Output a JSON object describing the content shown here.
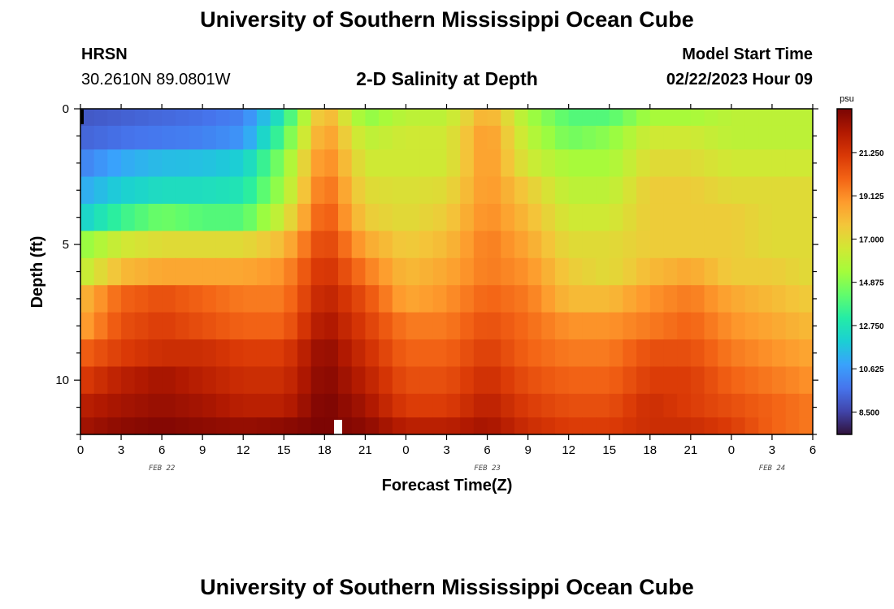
{
  "header": {
    "title": "University of Southern Mississippi Ocean Cube",
    "station": "HRSN",
    "coords": "30.2610N  89.0801W",
    "plot_title": "2-D Salinity at Depth",
    "model_label": "Model Start Time",
    "model_time": "02/22/2023 Hour 09"
  },
  "footer": {
    "title": "University of Southern Mississippi Ocean Cube"
  },
  "chart_data": {
    "type": "heatmap",
    "title": "2-D Salinity at Depth",
    "xlabel": "Forecast Time(Z)",
    "ylabel": "Depth (ft)",
    "x_ticks": [
      "0",
      "3",
      "6",
      "9",
      "12",
      "15",
      "18",
      "21",
      "0",
      "3",
      "6",
      "9",
      "12",
      "15",
      "18",
      "21",
      "0",
      "3",
      "6"
    ],
    "x_dates": [
      {
        "label": "FEB 22",
        "hour": 6
      },
      {
        "label": "FEB 23",
        "hour": 30
      },
      {
        "label": "FEB 24",
        "hour": 51
      }
    ],
    "x_range_hours": [
      0,
      54
    ],
    "y_ticks": [
      "0",
      "5",
      "10"
    ],
    "y_tick_values": [
      0,
      5,
      10
    ],
    "y_range_ft": [
      0,
      12
    ],
    "colorbar": {
      "unit": "psu",
      "min": 7.4,
      "max": 23.4,
      "ticks": [
        "21.250",
        "19.125",
        "17.000",
        "14.875",
        "12.750",
        "10.625",
        "8.500"
      ],
      "tick_values": [
        21.25,
        19.125,
        17.0,
        14.875,
        12.75,
        10.625,
        8.5
      ],
      "palette": [
        "#30123b",
        "#4145ab",
        "#4675ed",
        "#39a2fc",
        "#1bcfd4",
        "#24eca6",
        "#61fc6c",
        "#a4fc3b",
        "#d1e834",
        "#f3c63a",
        "#fe9b2d",
        "#f36315",
        "#d93806",
        "#b11901",
        "#7a0403"
      ]
    },
    "depth_levels_ft": [
      0.25,
      1.0,
      2.0,
      3.0,
      4.0,
      5.0,
      6.0,
      7.0,
      8.0,
      9.0,
      10.0,
      11.0,
      11.75
    ],
    "time_hours": [
      0,
      3,
      6,
      9,
      12,
      15,
      18,
      21,
      24,
      27,
      30,
      33,
      36,
      39,
      42,
      45,
      48,
      51,
      54
    ],
    "salinity_psu": [
      [
        9.0,
        9.2,
        9.4,
        9.6,
        10.0,
        13.0,
        18.5,
        15.0,
        16.0,
        16.0,
        18.5,
        15.5,
        14.0,
        14.0,
        15.5,
        15.5,
        16.0,
        16.0,
        16.0
      ],
      [
        9.3,
        9.6,
        9.8,
        10.0,
        10.5,
        14.0,
        19.0,
        16.0,
        16.5,
        16.5,
        19.0,
        16.0,
        14.5,
        15.0,
        16.5,
        16.5,
        16.0,
        16.0,
        16.0
      ],
      [
        10.0,
        11.0,
        11.5,
        11.6,
        12.0,
        15.0,
        19.5,
        16.5,
        16.5,
        16.5,
        19.0,
        16.5,
        15.5,
        15.5,
        17.0,
        17.0,
        16.5,
        16.5,
        16.5
      ],
      [
        11.0,
        12.0,
        12.5,
        12.5,
        12.8,
        15.5,
        20.0,
        17.0,
        16.8,
        17.0,
        19.0,
        17.5,
        16.0,
        16.0,
        17.5,
        17.5,
        17.0,
        17.0,
        17.0
      ],
      [
        12.0,
        13.5,
        14.5,
        14.0,
        14.0,
        16.5,
        20.5,
        17.5,
        17.0,
        17.5,
        19.2,
        18.0,
        16.5,
        16.5,
        17.5,
        17.5,
        17.5,
        17.0,
        17.0
      ],
      [
        15.0,
        16.5,
        17.0,
        17.0,
        17.0,
        18.0,
        21.0,
        18.5,
        17.5,
        18.0,
        19.5,
        18.5,
        17.0,
        17.0,
        17.5,
        17.5,
        17.5,
        17.0,
        17.0
      ],
      [
        16.0,
        18.0,
        18.5,
        18.5,
        18.5,
        19.0,
        21.5,
        19.5,
        18.0,
        18.5,
        19.5,
        19.0,
        17.5,
        17.0,
        18.0,
        18.5,
        17.5,
        17.5,
        17.0
      ],
      [
        18.0,
        20.0,
        20.5,
        20.0,
        19.5,
        19.5,
        22.0,
        20.5,
        18.5,
        19.0,
        20.0,
        19.5,
        18.0,
        18.0,
        19.0,
        19.5,
        18.5,
        18.0,
        17.5
      ],
      [
        18.5,
        20.5,
        21.0,
        20.5,
        20.0,
        20.0,
        22.5,
        21.0,
        19.5,
        19.5,
        20.5,
        19.8,
        19.0,
        19.0,
        19.5,
        20.0,
        19.0,
        18.5,
        18.0
      ],
      [
        20.0,
        21.0,
        21.5,
        21.5,
        21.0,
        21.0,
        23.0,
        21.5,
        20.0,
        20.0,
        21.0,
        20.0,
        19.5,
        19.5,
        20.5,
        20.5,
        19.5,
        19.0,
        18.5
      ],
      [
        21.0,
        22.0,
        22.5,
        22.0,
        21.5,
        21.5,
        23.2,
        22.0,
        20.5,
        20.5,
        21.5,
        20.5,
        20.0,
        20.0,
        21.0,
        21.0,
        20.0,
        19.5,
        19.0
      ],
      [
        22.0,
        22.5,
        22.8,
        22.5,
        22.0,
        22.0,
        23.4,
        22.5,
        21.0,
        21.0,
        22.0,
        21.0,
        20.5,
        20.5,
        21.5,
        21.0,
        20.5,
        20.0,
        19.5
      ],
      [
        22.5,
        23.0,
        23.2,
        23.0,
        22.8,
        23.0,
        23.4,
        23.0,
        22.0,
        22.0,
        22.5,
        21.5,
        21.0,
        21.0,
        21.5,
        21.5,
        21.0,
        20.0,
        19.5
      ]
    ]
  }
}
